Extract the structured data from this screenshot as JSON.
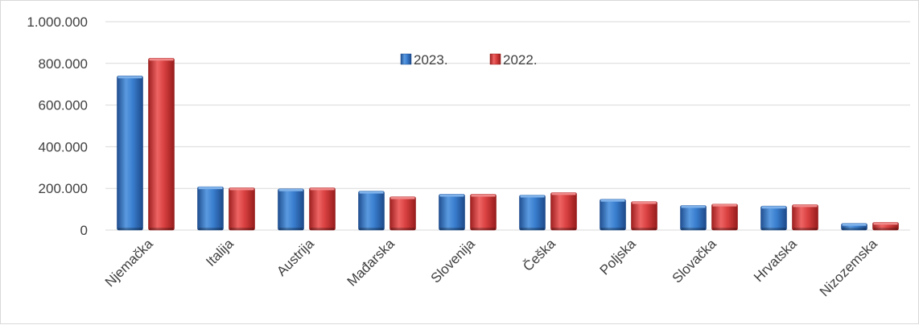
{
  "chart_data": {
    "type": "bar",
    "title": "",
    "xlabel": "",
    "ylabel": "",
    "categories": [
      "Njemačka",
      "Italija",
      "Austrija",
      "Mađarska",
      "Slovenija",
      "Češka",
      "Poljska",
      "Slovačka",
      "Hrvatska",
      "Nizozemska"
    ],
    "series": [
      {
        "name": "2023.",
        "color": "#2e74c8",
        "values": [
          740000,
          208000,
          198000,
          187000,
          172000,
          168000,
          148000,
          118000,
          115000,
          32000
        ]
      },
      {
        "name": "2022.",
        "color": "#d63a3a",
        "values": [
          825000,
          203000,
          203000,
          160000,
          172000,
          180000,
          137000,
          125000,
          122000,
          37000
        ]
      }
    ],
    "ylim": [
      0,
      1000000
    ],
    "yticks": [
      0,
      200000,
      400000,
      600000,
      800000,
      1000000
    ],
    "ytick_labels": [
      "0",
      "200.000",
      "400.000",
      "600.000",
      "800.000",
      "1.000.000"
    ],
    "grid": true,
    "legend_position": "top-center"
  }
}
